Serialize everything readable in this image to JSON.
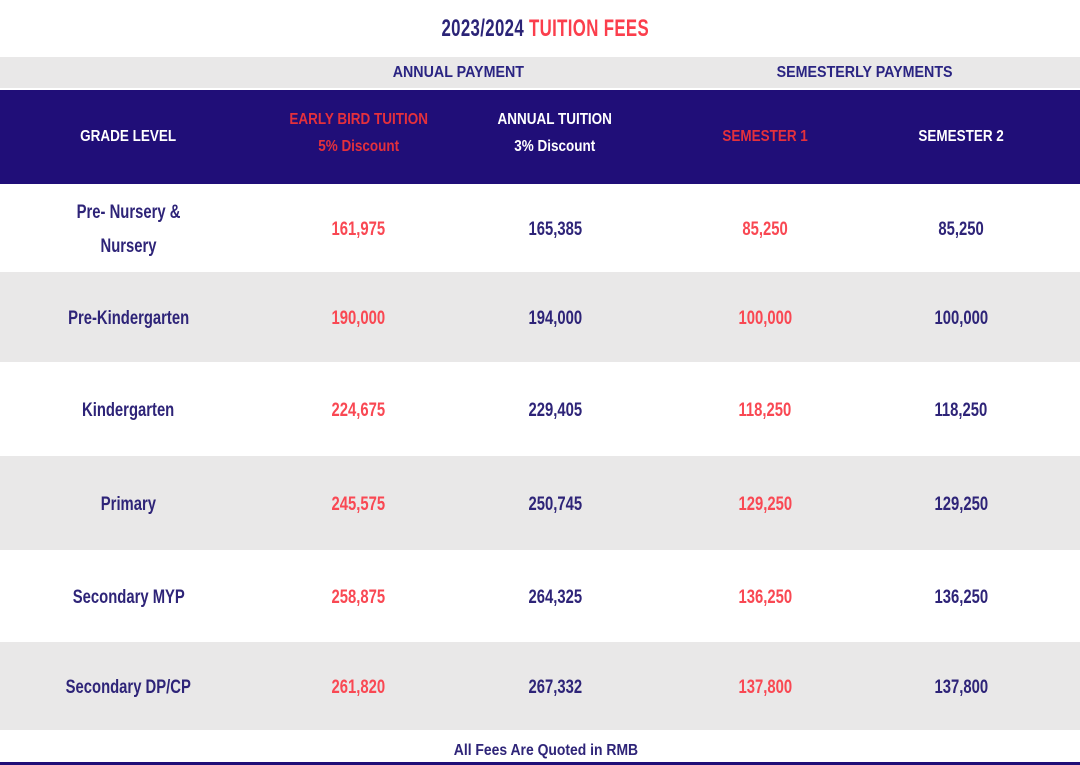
{
  "title": {
    "year": "2023/2024",
    "label": "TUITION FEES"
  },
  "group_headers": {
    "annual": "ANNUAL PAYMENT",
    "semesterly": "SEMESTERLY PAYMENTS"
  },
  "columns": {
    "grade": "GRADE LEVEL",
    "early_bird_line1": "EARLY BIRD TUITION",
    "early_bird_line2": "5% Discount",
    "annual_line1": "ANNUAL TUITION",
    "annual_line2": "3% Discount",
    "semester1": "SEMESTER 1",
    "semester2": "SEMESTER 2"
  },
  "rows": [
    {
      "grade_line1": "Pre- Nursery &",
      "grade_line2": "Nursery",
      "early_bird": "161,975",
      "annual": "165,385",
      "semester1": "85,250",
      "semester2": "85,250"
    },
    {
      "grade": "Pre-Kindergarten",
      "early_bird": "190,000",
      "annual": "194,000",
      "semester1": "100,000",
      "semester2": "100,000"
    },
    {
      "grade": "Kindergarten",
      "early_bird": "224,675",
      "annual": "229,405",
      "semester1": "118,250",
      "semester2": "118,250"
    },
    {
      "grade": "Primary",
      "early_bird": "245,575",
      "annual": "250,745",
      "semester1": "129,250",
      "semester2": "129,250"
    },
    {
      "grade": "Secondary MYP",
      "early_bird": "258,875",
      "annual": "264,325",
      "semester1": "136,250",
      "semester2": "136,250"
    },
    {
      "grade": "Secondary DP/CP",
      "early_bird": "261,820",
      "annual": "267,332",
      "semester1": "137,800",
      "semester2": "137,800"
    }
  ],
  "footer": {
    "note": "All Fees Are Quoted in RMB"
  },
  "colors": {
    "navy": "#200e78",
    "navy-title": "#2b2477",
    "navy-text": "#2e2478",
    "navy-band-text": "#2a2482",
    "gray-band": "#e9e8e8",
    "gray-row": "#e9e8e8",
    "red-title": "#fb3e4c",
    "red-header": "#e4303c",
    "red-value": "#f94853"
  },
  "currency_note": "RMB"
}
